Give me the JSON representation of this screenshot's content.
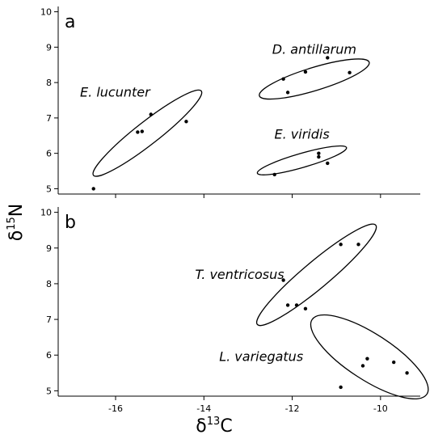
{
  "chart_data": {
    "type": "scatter",
    "xlabel": {
      "base": "δ",
      "sup": "13",
      "tail": "C"
    },
    "ylabel": {
      "base": "δ",
      "sup": "15",
      "tail": "N"
    },
    "xlim": [
      -17.3,
      -9.1
    ],
    "xticks": [
      -16,
      -14,
      -12,
      -10
    ],
    "panels": [
      {
        "label": "a",
        "ylim": [
          4.85,
          10.15
        ],
        "yticks": [
          5,
          6,
          7,
          8,
          9,
          10
        ],
        "groups": [
          {
            "name": "D. antillarum",
            "points": [
              [
                -12.2,
                8.1
              ],
              [
                -11.7,
                8.3
              ],
              [
                -12.1,
                7.72
              ],
              [
                -11.2,
                8.7
              ],
              [
                -10.7,
                8.28
              ]
            ],
            "ellipse": {
              "cx": -11.5,
              "cy": 8.1,
              "rx": 1.3,
              "ry": 0.26,
              "angle": 17
            }
          },
          {
            "name": "E. lucunter",
            "points": [
              [
                -16.5,
                5.0
              ],
              [
                -15.5,
                6.6
              ],
              [
                -15.4,
                6.62
              ],
              [
                -15.2,
                7.1
              ],
              [
                -14.4,
                6.9
              ]
            ],
            "ellipse": {
              "cx": -15.28,
              "cy": 6.57,
              "rx": 1.55,
              "ry": 0.26,
              "angle": 38
            }
          },
          {
            "name": "E. viridis",
            "points": [
              [
                -12.4,
                5.4
              ],
              [
                -11.4,
                5.9
              ],
              [
                -11.4,
                6.0
              ],
              [
                -11.2,
                5.72
              ]
            ],
            "ellipse": {
              "cx": -11.78,
              "cy": 5.8,
              "rx": 1.05,
              "ry": 0.16,
              "angle": 16
            }
          }
        ]
      },
      {
        "label": "b",
        "ylim": [
          4.85,
          10.15
        ],
        "yticks": [
          5,
          6,
          7,
          8,
          9,
          10
        ],
        "groups": [
          {
            "name": "T. ventricosus",
            "points": [
              [
                -12.2,
                8.1
              ],
              [
                -12.1,
                7.4
              ],
              [
                -11.9,
                7.4
              ],
              [
                -11.7,
                7.3
              ],
              [
                -10.9,
                9.1
              ],
              [
                -10.5,
                9.1
              ]
            ],
            "ellipse": {
              "cx": -11.45,
              "cy": 8.25,
              "rx": 1.75,
              "ry": 0.3,
              "angle": 40
            }
          },
          {
            "name": "L. variegatus",
            "points": [
              [
                -10.9,
                5.1
              ],
              [
                -10.4,
                5.7
              ],
              [
                -10.3,
                5.9
              ],
              [
                -9.7,
                5.8
              ],
              [
                -9.4,
                5.5
              ]
            ],
            "ellipse": {
              "cx": -10.25,
              "cy": 5.95,
              "rx": 1.55,
              "ry": 0.52,
              "angle": -33
            }
          }
        ]
      }
    ]
  }
}
